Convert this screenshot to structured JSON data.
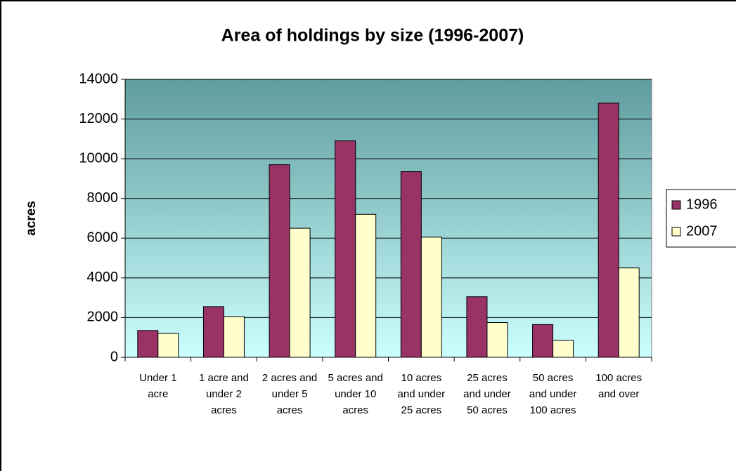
{
  "chart_data": {
    "type": "bar",
    "title": "Area of holdings by size (1996-2007)",
    "ylabel": "acres",
    "categories": [
      "Under 1 acre",
      "1 acre and under 2 acres",
      "2 acres and under 5 acres",
      "5 acres and under 10 acres",
      "10 acres and under 25 acres",
      "25 acres and under 50 acres",
      "50 acres and under 100 acres",
      "100 acres and over"
    ],
    "series": [
      {
        "name": "1996",
        "color": "#993366",
        "values": [
          1350,
          2550,
          9700,
          10900,
          9350,
          3050,
          1650,
          12800
        ]
      },
      {
        "name": "2007",
        "color": "#ffffcc",
        "values": [
          1200,
          2050,
          6500,
          7200,
          6050,
          1750,
          850,
          4500
        ]
      }
    ],
    "ylim": [
      0,
      14000
    ],
    "yticks": [
      0,
      2000,
      4000,
      6000,
      8000,
      10000,
      12000,
      14000
    ],
    "grid": true,
    "legend": "right"
  }
}
